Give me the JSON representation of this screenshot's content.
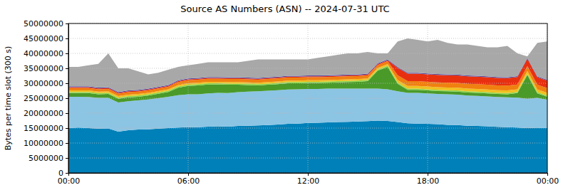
{
  "chart_data": {
    "type": "area",
    "title": "Source AS Numbers (ASN) -- 2024-07-31 UTC",
    "y_label": "Bytes per time slot (300 s)",
    "stacked": true,
    "grid": true,
    "x": [
      0,
      0.5,
      1,
      1.5,
      2,
      2.5,
      3,
      3.5,
      4,
      4.5,
      5,
      5.5,
      6,
      6.5,
      7,
      7.5,
      8,
      8.5,
      9,
      9.5,
      10,
      10.5,
      11,
      11.5,
      12,
      12.5,
      13,
      13.5,
      14,
      14.5,
      15,
      15.5,
      16,
      16.5,
      17,
      17.5,
      18,
      18.5,
      19,
      19.5,
      20,
      20.5,
      21,
      21.5,
      22,
      22.5,
      23,
      23.5,
      24
    ],
    "xlim": [
      0,
      24
    ],
    "xticks": [
      {
        "value": 0,
        "label": "00:00"
      },
      {
        "value": 6,
        "label": "06:00"
      },
      {
        "value": 12,
        "label": "12:00"
      },
      {
        "value": 18,
        "label": "18:00"
      },
      {
        "value": 24,
        "label": "00:00"
      }
    ],
    "ylim": [
      0,
      50000000
    ],
    "yticks": [
      0,
      5000000,
      10000000,
      15000000,
      20000000,
      25000000,
      30000000,
      35000000,
      40000000,
      45000000,
      50000000
    ],
    "series": [
      {
        "color": "#0080b8",
        "values": [
          15000000,
          15200000,
          15000000,
          14800000,
          14900000,
          13800000,
          14300000,
          14500000,
          14600000,
          14800000,
          15000000,
          15200000,
          15300000,
          15300000,
          15500000,
          15600000,
          15500000,
          15700000,
          15800000,
          15900000,
          16000000,
          16200000,
          16400000,
          16500000,
          16700000,
          16800000,
          16900000,
          17000000,
          17100000,
          17200000,
          17300000,
          17500000,
          17400000,
          17000000,
          16600000,
          16500000,
          16400000,
          16300000,
          16100000,
          16000000,
          15800000,
          15700000,
          15600000,
          15400000,
          15300000,
          15200000,
          15000000,
          15100000,
          15000000
        ]
      },
      {
        "color": "#8cc4e4",
        "values": [
          10500000,
          10300000,
          10400000,
          10300000,
          10200000,
          9800000,
          9700000,
          9800000,
          10000000,
          10200000,
          10500000,
          10800000,
          11000000,
          11000000,
          11100000,
          11200000,
          11200000,
          11300000,
          11400000,
          11400000,
          11500000,
          11500000,
          11500000,
          11500000,
          11400000,
          11300000,
          11300000,
          11200000,
          11100000,
          11000000,
          10900000,
          10700000,
          10600000,
          10300000,
          10200000,
          10300000,
          10200000,
          10100000,
          10200000,
          10200000,
          10100000,
          10100000,
          10000000,
          10000000,
          10000000,
          10000000,
          9800000,
          10000000,
          9500000
        ]
      },
      {
        "color": "#4a9a2a",
        "values": [
          1200000,
          1200000,
          1300000,
          1200000,
          1300000,
          1200000,
          1300000,
          1200000,
          1300000,
          1500000,
          1600000,
          2500000,
          2800000,
          3000000,
          3000000,
          2800000,
          2800000,
          2500000,
          2200000,
          2000000,
          2000000,
          2000000,
          2100000,
          2000000,
          2000000,
          2000000,
          2000000,
          2100000,
          2200000,
          2300000,
          2500000,
          6000000,
          7500000,
          2500000,
          1000000,
          1000000,
          1000000,
          1000000,
          1000000,
          1000000,
          1000000,
          1000000,
          1000000,
          1000000,
          1000000,
          1500000,
          8000000,
          1500000,
          1000000
        ]
      },
      {
        "color": "#8ed44a",
        "values": [
          400000,
          400000,
          400000,
          400000,
          400000,
          400000,
          400000,
          400000,
          400000,
          400000,
          400000,
          400000,
          400000,
          400000,
          400000,
          400000,
          400000,
          400000,
          400000,
          400000,
          400000,
          400000,
          400000,
          400000,
          400000,
          400000,
          400000,
          400000,
          400000,
          400000,
          400000,
          400000,
          400000,
          400000,
          400000,
          400000,
          400000,
          400000,
          400000,
          400000,
          400000,
          400000,
          400000,
          400000,
          400000,
          400000,
          400000,
          400000,
          400000
        ]
      },
      {
        "color": "#f0c020",
        "values": [
          500000,
          500000,
          500000,
          500000,
          500000,
          500000,
          500000,
          500000,
          500000,
          500000,
          500000,
          500000,
          500000,
          500000,
          500000,
          500000,
          500000,
          500000,
          500000,
          500000,
          500000,
          500000,
          500000,
          500000,
          500000,
          500000,
          500000,
          500000,
          500000,
          500000,
          500000,
          500000,
          500000,
          900000,
          900000,
          900000,
          900000,
          900000,
          900000,
          900000,
          900000,
          900000,
          900000,
          900000,
          900000,
          900000,
          900000,
          900000,
          900000
        ]
      },
      {
        "color": "#f08010",
        "values": [
          800000,
          800000,
          800000,
          800000,
          800000,
          800000,
          800000,
          800000,
          800000,
          800000,
          800000,
          1000000,
          1000000,
          1000000,
          1000000,
          1000000,
          1000000,
          1000000,
          1000000,
          1000000,
          1000000,
          1000000,
          1000000,
          1000000,
          1000000,
          1000000,
          1000000,
          1000000,
          1000000,
          1000000,
          1000000,
          1000000,
          1000000,
          1600000,
          1600000,
          1600000,
          1600000,
          1600000,
          1600000,
          1600000,
          1600000,
          1600000,
          1600000,
          1600000,
          1600000,
          1600000,
          1600000,
          1600000,
          1600000
        ]
      },
      {
        "color": "#e83010",
        "values": [
          300000,
          300000,
          300000,
          300000,
          300000,
          300000,
          300000,
          300000,
          300000,
          300000,
          300000,
          300000,
          300000,
          300000,
          300000,
          300000,
          300000,
          300000,
          300000,
          300000,
          300000,
          300000,
          300000,
          300000,
          300000,
          300000,
          300000,
          300000,
          300000,
          300000,
          300000,
          300000,
          300000,
          2500000,
          2500000,
          2500000,
          2500000,
          2500000,
          2500000,
          2500000,
          2500000,
          2500000,
          2500000,
          2500000,
          2500000,
          2500000,
          2500000,
          2500000,
          2500000
        ]
      },
      {
        "color": "#6050a0",
        "values": [
          300000,
          300000,
          300000,
          300000,
          300000,
          300000,
          300000,
          300000,
          300000,
          300000,
          300000,
          300000,
          300000,
          300000,
          300000,
          300000,
          300000,
          300000,
          300000,
          300000,
          300000,
          300000,
          300000,
          300000,
          300000,
          300000,
          300000,
          300000,
          300000,
          300000,
          300000,
          300000,
          300000,
          300000,
          300000,
          300000,
          300000,
          300000,
          300000,
          300000,
          300000,
          300000,
          300000,
          300000,
          300000,
          300000,
          300000,
          300000,
          300000
        ]
      },
      {
        "color": "#a8a8a8",
        "values": [
          6500000,
          6500000,
          7000000,
          7900000,
          11300000,
          7900000,
          7400000,
          6200000,
          4800000,
          4700000,
          5100000,
          4500000,
          4400000,
          4700000,
          4900000,
          4900000,
          5000000,
          5000000,
          5600000,
          6200000,
          6000000,
          5800000,
          5500000,
          5500000,
          5400000,
          5900000,
          6300000,
          6700000,
          7100000,
          7000000,
          7300000,
          3300000,
          2000000,
          8500000,
          11500000,
          11000000,
          10700000,
          11400000,
          10500000,
          10100000,
          10400000,
          10000000,
          9700000,
          9900000,
          10500000,
          7600000,
          500000,
          11200000,
          12800000
        ]
      }
    ]
  }
}
